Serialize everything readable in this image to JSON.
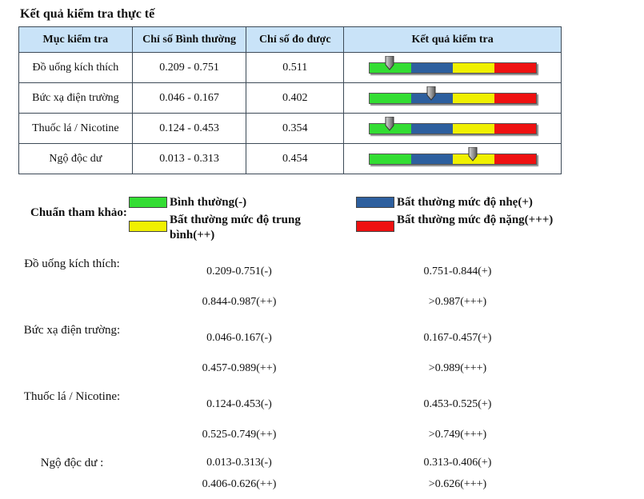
{
  "heading": "Kết quả kiểm tra thực tế",
  "table": {
    "headers": [
      "Mục kiểm tra",
      "Chỉ số Bình thường",
      "Chỉ số đo được",
      "Kết quả kiểm tra"
    ],
    "rows": [
      {
        "item": "Đồ uống kích thích",
        "normal": "0.209 - 0.751",
        "measured": "0.511",
        "level_position": 0.12
      },
      {
        "item": "Bức xạ điện trường",
        "normal": "0.046 - 0.167",
        "measured": "0.402",
        "level_position": 0.37
      },
      {
        "item": "Thuốc lá / Nicotine",
        "normal": "0.124 - 0.453",
        "measured": "0.354",
        "level_position": 0.12
      },
      {
        "item": "Ngộ độc dư",
        "normal": "0.013 - 0.313",
        "measured": "0.454",
        "level_position": 0.62
      }
    ],
    "bar_colors": [
      "#33dd33",
      "#2d5f9e",
      "#f0f000",
      "#ee1111"
    ]
  },
  "reference": {
    "title": "Chuẩn tham khảo:",
    "legend": [
      {
        "label": "Bình thường(-)",
        "color": "#33dd33"
      },
      {
        "label": "Bất thường mức độ nhẹ(+)",
        "color": "#2d5f9e"
      },
      {
        "label": "Bất thường mức độ trung bình(++)",
        "color": "#f0f000"
      },
      {
        "label": "Bất thường mức độ nặng(+++)",
        "color": "#ee1111"
      }
    ],
    "items": [
      {
        "name": "Đồ uống kích thích:",
        "ranges": [
          "0.209-0.751(-)",
          "0.751-0.844(+)",
          "0.844-0.987(++)",
          ">0.987(+++)"
        ]
      },
      {
        "name": "Bức xạ điện trường:",
        "ranges": [
          "0.046-0.167(-)",
          "0.167-0.457(+)",
          "0.457-0.989(++)",
          ">0.989(+++)"
        ]
      },
      {
        "name": "Thuốc lá / Nicotine:",
        "ranges": [
          "0.124-0.453(-)",
          "0.453-0.525(+)",
          "0.525-0.749(++)",
          ">0.749(+++)"
        ]
      },
      {
        "name": "Ngộ độc dư :",
        "ranges": [
          "0.013-0.313(-)",
          "0.313-0.406(+)",
          "0.406-0.626(++)",
          ">0.626(+++)"
        ]
      }
    ]
  }
}
